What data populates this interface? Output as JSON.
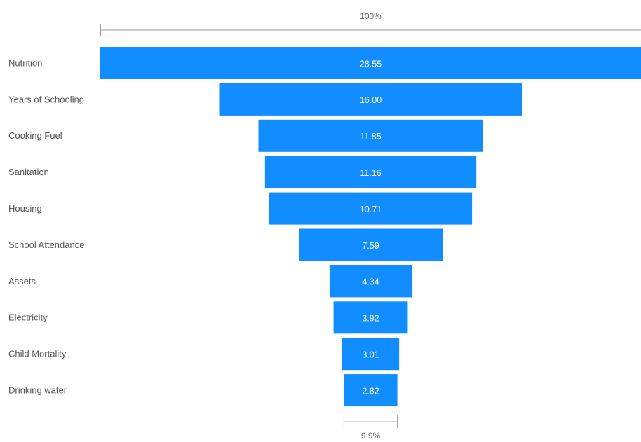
{
  "chart_data": {
    "type": "bar",
    "subtype": "funnel",
    "categories": [
      "Nutrition",
      "Years of Schooling",
      "Cooking Fuel",
      "Sanitation",
      "Housing",
      "School Attendance",
      "Assets",
      "Electricity",
      "Child Mortality",
      "Drinking water"
    ],
    "values": [
      28.55,
      16.0,
      11.85,
      11.16,
      10.71,
      7.59,
      4.34,
      3.92,
      3.01,
      2.82
    ],
    "value_labels": [
      "28.55",
      "16.00",
      "11.85",
      "11.16",
      "10.71",
      "7.59",
      "4.34",
      "3.92",
      "3.01",
      "2.82"
    ],
    "top_scale_label": "100%",
    "bottom_scale_label": "9.9%",
    "bar_color": "#118DFF",
    "label_color": "#555555",
    "value_label_color": "#FFFFFF",
    "scale_color": "#999999",
    "grid": false
  }
}
